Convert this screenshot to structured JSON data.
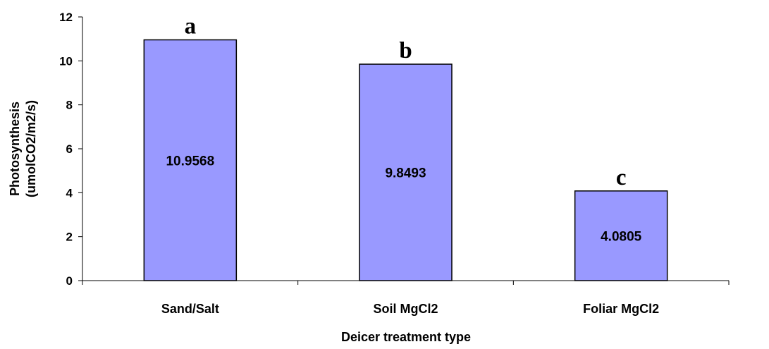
{
  "chart_data": {
    "type": "bar",
    "categories": [
      "Sand/Salt",
      "Soil MgCl2",
      "Foliar MgCl2"
    ],
    "values": [
      10.9568,
      9.8493,
      4.0805
    ],
    "data_labels": [
      "10.9568",
      "9.8493",
      "4.0805"
    ],
    "significance_letters": [
      "a",
      "b",
      "c"
    ],
    "title": "",
    "xlabel": "Deicer treatment type",
    "ylabel_lines": [
      "Photosynthesis",
      "(umolCO2/m2/s)"
    ],
    "ylim": [
      0,
      12
    ],
    "yticks": [
      "0",
      "2",
      "4",
      "6",
      "8",
      "10",
      "12"
    ],
    "bar_color": "#9999ff",
    "grid": false,
    "legend": "none"
  }
}
